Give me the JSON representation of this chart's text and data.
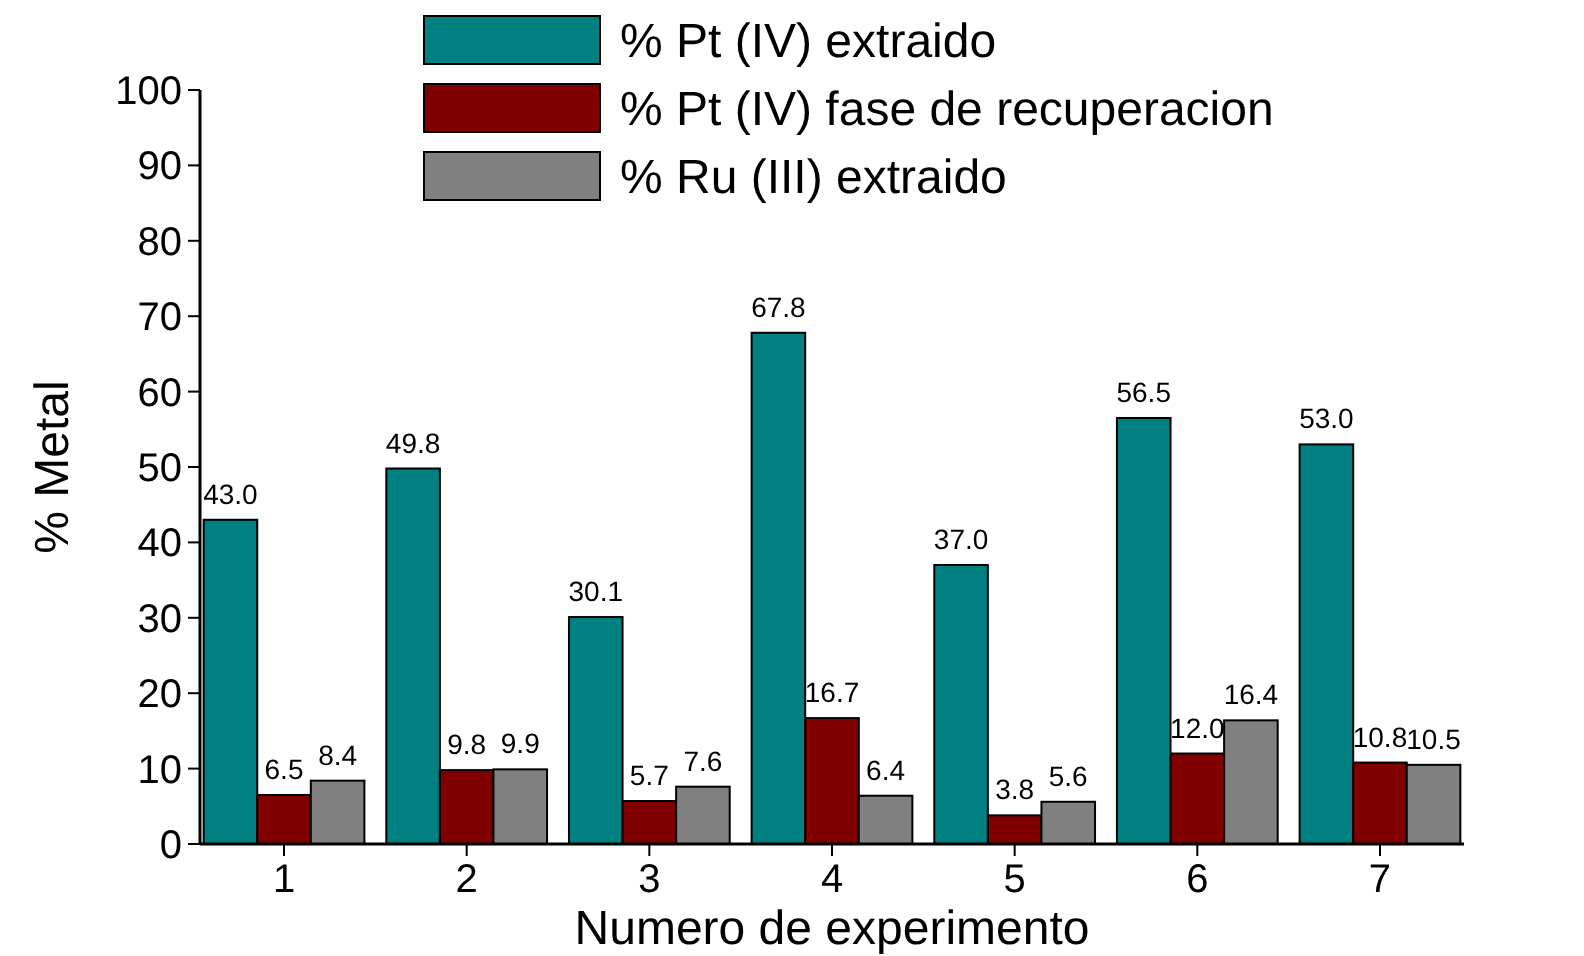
{
  "chart_data": {
    "type": "bar",
    "xlabel": "Numero de experimento",
    "ylabel": "% Metal",
    "categories": [
      "1",
      "2",
      "3",
      "4",
      "5",
      "6",
      "7"
    ],
    "series": [
      {
        "name": "% Pt (IV) extraido",
        "color": "#008080",
        "values": [
          43.0,
          49.8,
          30.1,
          67.8,
          37.0,
          56.5,
          53.0
        ],
        "value_labels": [
          "43.0",
          "49.8",
          "30.1",
          "67.8",
          "37.0",
          "56.5",
          "53.0"
        ]
      },
      {
        "name": "% Pt (IV) fase de recuperacion",
        "color": "#800000",
        "values": [
          6.5,
          9.8,
          5.7,
          16.7,
          3.8,
          12.0,
          10.8
        ],
        "value_labels": [
          "6.5",
          "9.8",
          "5.7",
          "16.7",
          "3.8",
          "12.0",
          "10.8"
        ]
      },
      {
        "name": "% Ru (III) extraido",
        "color": "#808080",
        "values": [
          8.4,
          9.9,
          7.6,
          6.4,
          5.6,
          16.4,
          10.5
        ],
        "value_labels": [
          "8.4",
          "9.9",
          "7.6",
          "6.4",
          "5.6",
          "16.4",
          "10.5"
        ]
      }
    ],
    "ylim": [
      0,
      100
    ],
    "yticks": [
      0,
      10,
      20,
      30,
      40,
      50,
      60,
      70,
      80,
      90,
      100
    ],
    "grid": false,
    "legend": "top"
  }
}
